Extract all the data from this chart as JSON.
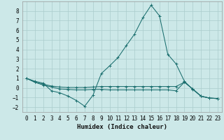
{
  "xlabel": "Humidex (Indice chaleur)",
  "background_color": "#cce8e8",
  "grid_color": "#aacccc",
  "line_color": "#1a6e6e",
  "series": [
    {
      "x": [
        0,
        1,
        2,
        3,
        4,
        5,
        6,
        7,
        8,
        9,
        10,
        11,
        12,
        13,
        14,
        15,
        16,
        17,
        18,
        19,
        20,
        21,
        22,
        23
      ],
      "y": [
        1.0,
        0.7,
        0.5,
        -0.3,
        -0.5,
        -0.85,
        -1.3,
        -1.9,
        -0.75,
        1.5,
        2.3,
        3.15,
        4.4,
        5.6,
        7.3,
        8.6,
        7.5,
        3.5,
        2.5,
        0.7,
        -0.15,
        -0.85,
        -1.05,
        -1.1
      ]
    },
    {
      "x": [
        0,
        1,
        2,
        3,
        4,
        5,
        6,
        7,
        8,
        9,
        10,
        11,
        12,
        13,
        14,
        15,
        16,
        17,
        18,
        19,
        20,
        21,
        22,
        23
      ],
      "y": [
        1.0,
        0.6,
        0.4,
        0.2,
        0.1,
        0.05,
        0.05,
        0.05,
        0.1,
        0.15,
        0.15,
        0.15,
        0.15,
        0.15,
        0.15,
        0.15,
        0.15,
        0.15,
        0.15,
        0.6,
        -0.1,
        -0.85,
        -1.05,
        -1.1
      ]
    },
    {
      "x": [
        0,
        1,
        2,
        3,
        4,
        5,
        6,
        7,
        8,
        9,
        10,
        11,
        12,
        13,
        14,
        15,
        16,
        17,
        18,
        19,
        20,
        21,
        22,
        23
      ],
      "y": [
        1.0,
        0.6,
        0.3,
        0.1,
        -0.1,
        -0.15,
        -0.2,
        -0.2,
        -0.15,
        -0.15,
        -0.2,
        -0.2,
        -0.2,
        -0.2,
        -0.2,
        -0.2,
        -0.2,
        -0.2,
        -0.3,
        0.6,
        -0.1,
        -0.85,
        -1.05,
        -1.1
      ]
    }
  ],
  "xlim": [
    -0.5,
    23.5
  ],
  "ylim": [
    -2.5,
    9.0
  ],
  "yticks": [
    -2,
    -1,
    0,
    1,
    2,
    3,
    4,
    5,
    6,
    7,
    8
  ],
  "xticks": [
    0,
    1,
    2,
    3,
    4,
    5,
    6,
    7,
    8,
    9,
    10,
    11,
    12,
    13,
    14,
    15,
    16,
    17,
    18,
    19,
    20,
    21,
    22,
    23
  ],
  "tick_fontsize": 5.5,
  "xlabel_fontsize": 6.5
}
